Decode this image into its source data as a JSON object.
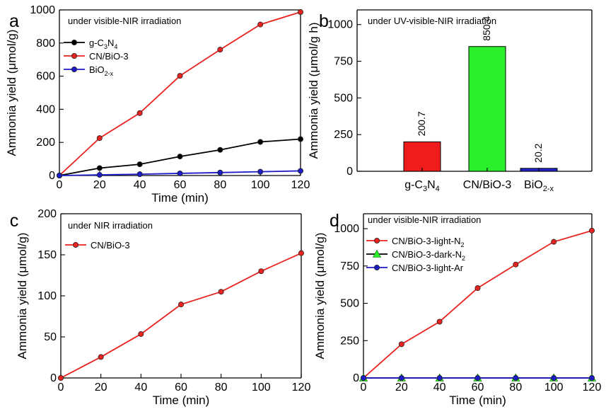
{
  "chart_data": [
    {
      "panel": "a",
      "type": "line",
      "annotation": "under visible-NIR irradiation",
      "xlabel": "Time (min)",
      "ylabel": "Ammonia yield (μmol/g)",
      "xlim": [
        0,
        120
      ],
      "ylim": [
        0,
        1000
      ],
      "xticks": [
        0,
        20,
        40,
        60,
        80,
        100,
        120
      ],
      "yticks": [
        0,
        200,
        400,
        600,
        800,
        1000
      ],
      "legend_position": "top-left",
      "series": [
        {
          "name": "g-C3N4",
          "label_parts": [
            "g-C",
            "3",
            "N",
            "4"
          ],
          "color": "#000000",
          "marker": "circle",
          "x": [
            0,
            20,
            40,
            60,
            80,
            100,
            120
          ],
          "y": [
            0,
            45,
            68,
            115,
            155,
            203,
            220
          ]
        },
        {
          "name": "CN/BiO-3",
          "label_parts": [
            "CN/BiO-3"
          ],
          "color": "#e8231f",
          "marker": "circle",
          "x": [
            0,
            20,
            40,
            60,
            80,
            100,
            120
          ],
          "y": [
            0,
            226,
            377,
            602,
            760,
            912,
            987
          ]
        },
        {
          "name": "BiO2-x",
          "label_parts": [
            "BiO",
            "2-x"
          ],
          "color": "#1c1cc8",
          "marker": "circle",
          "x": [
            0,
            20,
            40,
            60,
            80,
            100,
            120
          ],
          "y": [
            0,
            4,
            8,
            13,
            18,
            23,
            28
          ]
        }
      ]
    },
    {
      "panel": "b",
      "type": "bar",
      "annotation": "under UV-visible-NIR irradiation",
      "xlabel": "",
      "ylabel": "Ammonia yield (μmol/g h)",
      "ylim": [
        0,
        1100
      ],
      "yticks": [
        0,
        250,
        500,
        750,
        1000
      ],
      "categories": [
        "g-C3N4",
        "CN/BiO-3",
        "BiO2-x"
      ],
      "category_label_parts": [
        [
          "g-C",
          "3",
          "N",
          "4"
        ],
        [
          "CN/BiO-3"
        ],
        [
          "BiO",
          "2-x"
        ]
      ],
      "values": [
        200.7,
        850.4,
        20.2
      ],
      "value_labels": [
        "200.7",
        "850.4",
        "20.2"
      ],
      "colors": [
        "#ee1c1c",
        "#2aef2a",
        "#2222cc"
      ]
    },
    {
      "panel": "c",
      "type": "line",
      "annotation": "under NIR irradiation",
      "xlabel": "Time (min)",
      "ylabel": "Ammonia yield (μmol/g)",
      "xlim": [
        0,
        120
      ],
      "ylim": [
        0,
        200
      ],
      "xticks": [
        0,
        20,
        40,
        60,
        80,
        100,
        120
      ],
      "yticks": [
        0,
        50,
        100,
        150,
        200
      ],
      "legend_position": "top-left",
      "series": [
        {
          "name": "CN/BiO-3",
          "label_parts": [
            "CN/BiO-3"
          ],
          "color": "#e8231f",
          "marker": "circle",
          "x": [
            0,
            20,
            40,
            60,
            80,
            100,
            120
          ],
          "y": [
            0,
            25.5,
            53.5,
            89.5,
            105,
            130,
            152
          ]
        }
      ]
    },
    {
      "panel": "d",
      "type": "line",
      "annotation": "under visible-NIR irradiation",
      "xlabel": "Time (min)",
      "ylabel": "Ammonia yield (μmol/g)",
      "xlim": [
        0,
        120
      ],
      "ylim": [
        0,
        1100
      ],
      "xticks": [
        0,
        20,
        40,
        60,
        80,
        100,
        120
      ],
      "yticks": [
        0,
        250,
        500,
        750,
        1000
      ],
      "legend_position": "top-left",
      "series": [
        {
          "name": "CN/BiO-3-light-N2",
          "label_parts": [
            "CN/BiO-3-light-N",
            "2"
          ],
          "color": "#e8231f",
          "marker": "circle",
          "x": [
            0,
            20,
            40,
            60,
            80,
            100,
            120
          ],
          "y": [
            0,
            226,
            377,
            602,
            760,
            912,
            987
          ]
        },
        {
          "name": "CN/BiO-3-dark-N2",
          "label_parts": [
            "CN/BiO-3-dark-N",
            "2"
          ],
          "color": "#2aef2a",
          "marker": "triangle",
          "line_color": "#000000",
          "x": [
            0,
            20,
            40,
            60,
            80,
            100,
            120
          ],
          "y": [
            0,
            0,
            0,
            0,
            0,
            0,
            0
          ]
        },
        {
          "name": "CN/BiO-3-light-Ar",
          "label_parts": [
            "CN/BiO-3-light-Ar"
          ],
          "color": "#1c1cc8",
          "marker": "circle",
          "x": [
            0,
            20,
            40,
            60,
            80,
            100,
            120
          ],
          "y": [
            0,
            0,
            0,
            0,
            0,
            0,
            0
          ]
        }
      ]
    }
  ]
}
